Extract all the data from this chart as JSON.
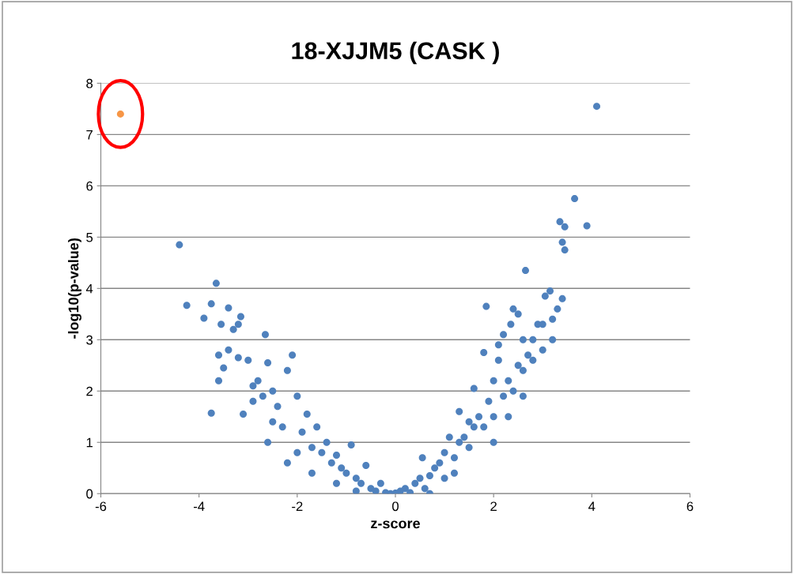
{
  "chart_data": {
    "type": "scatter",
    "title": "18-XJJM5 (CASK )",
    "xlabel": "z-score",
    "ylabel": "-log10(p-value)",
    "xlim": [
      -6,
      6
    ],
    "xticks": [
      -6,
      -4,
      -2,
      0,
      2,
      4,
      6
    ],
    "ylim": [
      0,
      8
    ],
    "yticks": [
      0,
      1,
      2,
      3,
      4,
      5,
      6,
      7,
      8
    ],
    "grid": "y",
    "marker": "circle",
    "legend": false,
    "series": [
      {
        "color": "#4f81bd",
        "x": [
          -4.4,
          -4.25,
          -3.9,
          -3.75,
          -3.65,
          -3.55,
          -3.4,
          -3.2,
          -3.15,
          -3.75,
          -3.6,
          -3.6,
          -3.5,
          -3.4,
          -3.3,
          -3.2,
          -3.1,
          -3.0,
          -2.9,
          -2.8,
          -2.65,
          -2.6,
          -2.5,
          -2.4,
          -2.2,
          -2.1,
          -2.0,
          -2.3,
          -1.9,
          -1.8,
          -1.7,
          -1.6,
          -1.5,
          -1.4,
          -1.3,
          -1.2,
          -1.1,
          -1.0,
          -0.9,
          -0.8,
          -0.7,
          -0.6,
          -0.5,
          -0.4,
          -0.3,
          -0.2,
          -0.1,
          0,
          -2.6,
          -2.0,
          -2.5,
          -2.7,
          -2.9,
          -2.2,
          -1.7,
          -1.2,
          -0.8,
          0.1,
          0.2,
          0.3,
          0.4,
          0.5,
          0.55,
          0.6,
          0.7,
          0.8,
          0.9,
          1.0,
          1.0,
          1.1,
          1.2,
          1.3,
          1.3,
          1.4,
          1.5,
          1.5,
          1.6,
          1.6,
          1.7,
          1.8,
          1.8,
          1.85,
          1.9,
          2.0,
          2.0,
          2.1,
          2.1,
          2.2,
          2.2,
          2.3,
          2.35,
          2.4,
          2.4,
          2.5,
          2.5,
          2.6,
          2.6,
          2.65,
          2.7,
          2.8,
          2.8,
          2.9,
          3.0,
          3.0,
          3.05,
          3.15,
          3.2,
          3.2,
          3.3,
          3.35,
          3.4,
          3.45,
          3.45,
          3.4,
          3.65,
          3.9,
          4.1,
          2.0,
          2.3,
          2.6,
          0.7,
          1.2
        ],
        "values": [
          4.85,
          3.67,
          3.42,
          3.7,
          4.1,
          3.3,
          3.62,
          3.3,
          3.45,
          1.57,
          2.2,
          2.7,
          2.45,
          2.8,
          3.2,
          2.65,
          1.55,
          2.6,
          1.8,
          2.2,
          3.1,
          2.55,
          2.0,
          1.7,
          2.4,
          2.7,
          1.9,
          1.3,
          1.2,
          1.55,
          0.9,
          1.3,
          0.8,
          1.0,
          0.6,
          0.75,
          0.5,
          0.4,
          0.95,
          0.3,
          0.2,
          0.55,
          0.1,
          0.05,
          0.2,
          0.02,
          0.0,
          0.01,
          1.0,
          0.8,
          1.4,
          1.9,
          2.1,
          0.6,
          0.4,
          0.2,
          0.05,
          0.05,
          0.1,
          0.02,
          0.2,
          0.3,
          0.7,
          0.1,
          0.35,
          0.5,
          0.6,
          0.8,
          0.3,
          1.1,
          0.7,
          1.0,
          1.6,
          1.1,
          0.9,
          1.4,
          1.3,
          2.05,
          1.5,
          1.3,
          2.75,
          3.65,
          1.8,
          1.5,
          2.2,
          2.6,
          2.9,
          1.9,
          3.1,
          2.2,
          3.3,
          2.0,
          3.6,
          2.5,
          3.5,
          2.4,
          3.0,
          4.35,
          2.7,
          2.6,
          3.0,
          3.3,
          3.3,
          2.8,
          3.85,
          3.95,
          3.4,
          3.0,
          3.6,
          5.3,
          4.9,
          4.75,
          5.2,
          3.8,
          5.75,
          5.22,
          7.55,
          1.0,
          1.5,
          1.9,
          0.0,
          0.4
        ]
      },
      {
        "color": "#f79646",
        "x": [
          -5.6
        ],
        "values": [
          7.4
        ]
      }
    ]
  }
}
